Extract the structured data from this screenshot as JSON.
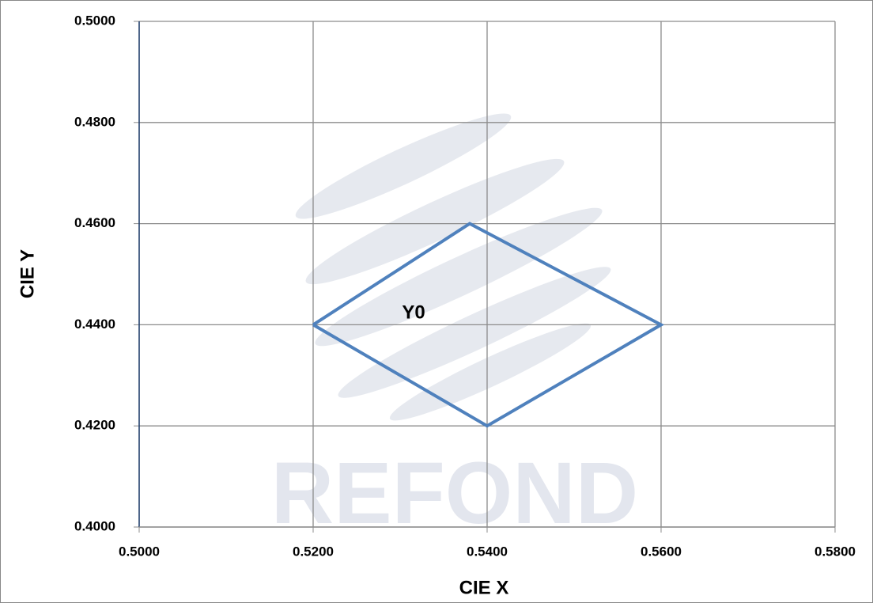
{
  "chart_data": {
    "type": "line",
    "x_label": "CIE  X",
    "y_label": "CIE Y",
    "annotation": "Y0",
    "watermark": "REFOND",
    "x": [
      0.52,
      0.538,
      0.56,
      0.54,
      0.52
    ],
    "series": [
      {
        "name": "Y0",
        "color": "#4f81bd",
        "values": [
          0.44,
          0.46,
          0.44,
          0.42,
          0.44
        ]
      }
    ],
    "xlim": [
      0.5,
      0.58
    ],
    "xticks": [
      {
        "value": 0.5,
        "label": "0.5000"
      },
      {
        "value": 0.52,
        "label": "0.5200"
      },
      {
        "value": 0.54,
        "label": "0.5400"
      },
      {
        "value": 0.56,
        "label": "0.5600"
      },
      {
        "value": 0.58,
        "label": "0.5800"
      }
    ],
    "ylim": [
      0.4,
      0.5
    ],
    "yticks": [
      {
        "value": 0.4,
        "label": "0.4000"
      },
      {
        "value": 0.42,
        "label": "0.4200"
      },
      {
        "value": 0.44,
        "label": "0.4400"
      },
      {
        "value": 0.46,
        "label": "0.4600"
      },
      {
        "value": 0.48,
        "label": "0.4800"
      },
      {
        "value": 0.5,
        "label": "0.5000"
      }
    ],
    "grid": true
  }
}
